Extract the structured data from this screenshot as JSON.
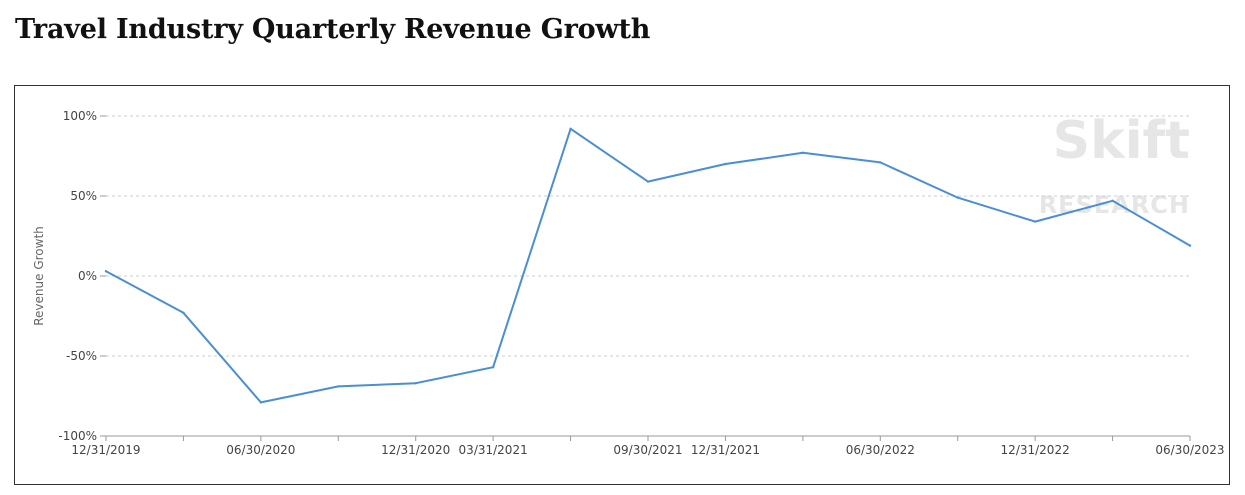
{
  "title": "Travel Industry Quarterly Revenue Growth",
  "watermark": {
    "brand": "Skift",
    "sub": "RESEARCH"
  },
  "colors": {
    "line": "#4a8fd1",
    "grid": "#cccccc",
    "axis": "#999999"
  },
  "chart_data": {
    "type": "line",
    "title": "Travel Industry Quarterly Revenue Growth",
    "xlabel": "",
    "ylabel": "Revenue Growth",
    "ylim": [
      -100,
      100
    ],
    "yticks": [
      100,
      50,
      0,
      -50,
      -100
    ],
    "ytick_labels": [
      "100%",
      "50%",
      "0%",
      "-50%",
      "-100%"
    ],
    "grid": "horizontal dashed",
    "x": [
      "12/31/2019",
      "03/31/2020",
      "06/30/2020",
      "09/30/2020",
      "12/31/2020",
      "03/31/2021",
      "06/30/2021",
      "09/30/2021",
      "12/31/2021",
      "03/31/2022",
      "06/30/2022",
      "09/30/2022",
      "12/31/2022",
      "03/31/2023",
      "06/30/2023"
    ],
    "xtick_labels": [
      "12/31/2019",
      "06/30/2020",
      "12/31/2020",
      "03/31/2021",
      "09/30/2021",
      "12/31/2021",
      "06/30/2022",
      "12/31/2022",
      "06/30/2023"
    ],
    "series": [
      {
        "values": [
          3,
          -23,
          -79,
          -69,
          -67,
          -57,
          92,
          59,
          70,
          77,
          71,
          49,
          34,
          47,
          19
        ]
      }
    ]
  }
}
